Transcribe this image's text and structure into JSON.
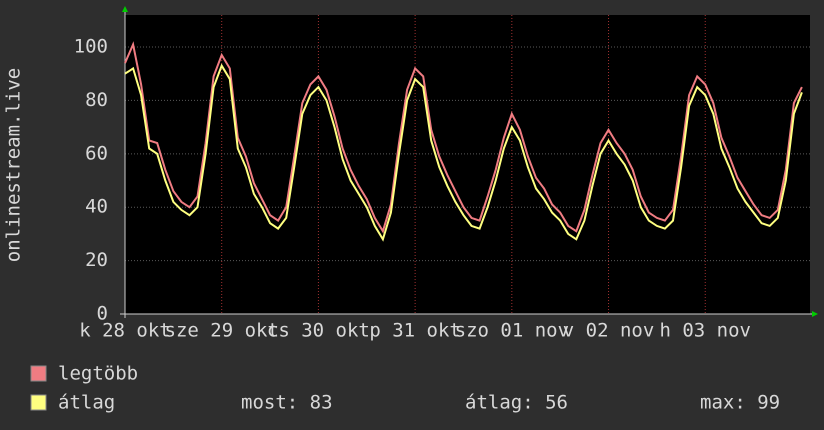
{
  "chart_data": {
    "type": "line",
    "ylabel": "onlinestream.live",
    "x": [
      0,
      2,
      4,
      6,
      8,
      10,
      12,
      14,
      16,
      18,
      20,
      22,
      24,
      26,
      28,
      30,
      32,
      34,
      36,
      38,
      40,
      42,
      44,
      46,
      48,
      50,
      52,
      54,
      56,
      58,
      60,
      62,
      64,
      66,
      68,
      70,
      72,
      74,
      76,
      78,
      80,
      82,
      84,
      86,
      88,
      90,
      92,
      94,
      96,
      98,
      100,
      102,
      104,
      106,
      108,
      110,
      112,
      114,
      116,
      118,
      120,
      122,
      124,
      126,
      128,
      130,
      132,
      134,
      136,
      138,
      140,
      142,
      144,
      146,
      148,
      150,
      152,
      154,
      156,
      158,
      160,
      162,
      164,
      166,
      168
    ],
    "xlim": [
      0,
      170
    ],
    "xticks": [
      {
        "value": 0,
        "label": "k 28 okt"
      },
      {
        "value": 24,
        "label": "sze 29 okt"
      },
      {
        "value": 48,
        "label": "cs 30 okt"
      },
      {
        "value": 72,
        "label": "p 31 okt"
      },
      {
        "value": 96,
        "label": "szo 01 nov"
      },
      {
        "value": 120,
        "label": "v 02 nov"
      },
      {
        "value": 144,
        "label": "h 03 nov"
      }
    ],
    "ylim": [
      0,
      112
    ],
    "yticks": [
      0,
      20,
      40,
      60,
      80,
      100
    ],
    "grid": true,
    "series": [
      {
        "name": "legtöbb",
        "color": "#f07c82",
        "values": [
          94,
          101,
          86,
          65,
          64,
          54,
          46,
          42,
          40,
          44,
          64,
          89,
          97,
          92,
          66,
          59,
          49,
          43,
          37,
          35,
          40,
          59,
          79,
          86,
          89,
          84,
          74,
          62,
          54,
          48,
          43,
          36,
          31,
          41,
          64,
          84,
          92,
          89,
          69,
          59,
          52,
          46,
          40,
          36,
          35,
          44,
          54,
          66,
          75,
          69,
          59,
          51,
          47,
          41,
          38,
          33,
          31,
          39,
          52,
          64,
          69,
          64,
          60,
          54,
          44,
          38,
          36,
          35,
          39,
          59,
          82,
          89,
          86,
          79,
          66,
          59,
          51,
          46,
          41,
          37,
          36,
          39,
          54,
          79,
          85
        ]
      },
      {
        "name": "átlag",
        "color": "#ffff80",
        "values": [
          90,
          92,
          82,
          62,
          60,
          50,
          42,
          39,
          37,
          40,
          60,
          85,
          93,
          88,
          62,
          55,
          45,
          40,
          34,
          32,
          36,
          55,
          75,
          82,
          85,
          80,
          70,
          58,
          50,
          45,
          40,
          33,
          28,
          38,
          60,
          80,
          88,
          85,
          65,
          55,
          48,
          42,
          37,
          33,
          32,
          40,
          50,
          62,
          70,
          65,
          55,
          47,
          43,
          38,
          35,
          30,
          28,
          35,
          48,
          60,
          65,
          60,
          56,
          50,
          40,
          35,
          33,
          32,
          35,
          55,
          78,
          85,
          82,
          75,
          62,
          55,
          47,
          42,
          38,
          34,
          33,
          36,
          50,
          75,
          83
        ]
      }
    ],
    "stats": [
      "most: 83",
      "átlag: 56",
      "max: 99"
    ]
  }
}
